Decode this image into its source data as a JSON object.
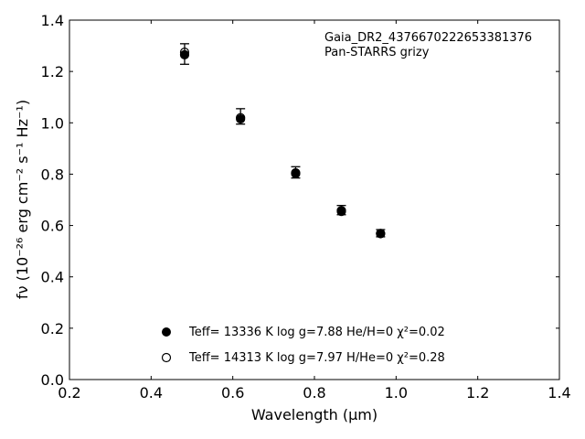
{
  "chart_data": {
    "type": "scatter",
    "title": "",
    "xlabel": "Wavelength (μm)",
    "ylabel": "fν (10⁻²⁶ erg cm⁻² s⁻¹ Hz⁻¹)",
    "xlim": [
      0.2,
      1.4
    ],
    "ylim": [
      0.0,
      1.4
    ],
    "xticks": [
      "0.2",
      "0.4",
      "0.6",
      "0.8",
      "1.0",
      "1.2",
      "1.4"
    ],
    "yticks": [
      "0.0",
      "0.2",
      "0.4",
      "0.6",
      "0.8",
      "1.0",
      "1.2",
      "1.4"
    ],
    "grid": false,
    "annotations": [
      "Gaia_DR2_4376670222653381376",
      "Pan-STARRS grizy"
    ],
    "observed": {
      "x": [
        0.482,
        0.619,
        0.754,
        0.866,
        0.962
      ],
      "y": [
        1.268,
        1.025,
        0.807,
        0.66,
        0.57
      ],
      "err_low": [
        0.04,
        0.03,
        0.022,
        0.018,
        0.014
      ],
      "err_high": [
        0.04,
        0.03,
        0.022,
        0.018,
        0.014
      ]
    },
    "series": [
      {
        "name": "Teff= 13336 K  log g=7.88  He/H=0  χ²=0.02",
        "marker": "filled-circle",
        "x": [
          0.482,
          0.619,
          0.754,
          0.866,
          0.962
        ],
        "y": [
          1.265,
          1.015,
          0.805,
          0.658,
          0.569
        ]
      },
      {
        "name": "Teff= 14313 K  log g=7.97  H/He=0  χ²=0.28",
        "marker": "open-circle",
        "x": [
          0.482,
          0.619,
          0.754,
          0.866,
          0.962
        ],
        "y": [
          1.275,
          1.02,
          0.802,
          0.655,
          0.568
        ]
      }
    ],
    "legend_placement": "lower-center",
    "colors": {
      "marker": "#000000",
      "axes": "#000000"
    }
  }
}
